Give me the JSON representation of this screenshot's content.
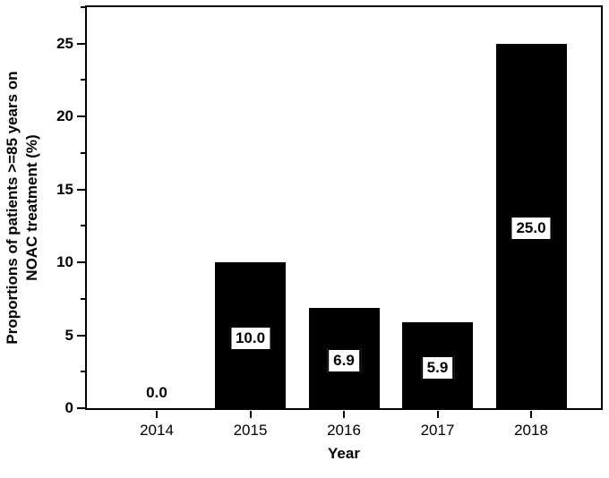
{
  "figure": {
    "background": "#ffffff",
    "axis_color": "#000000"
  },
  "chart_data": {
    "type": "bar",
    "categories": [
      "2014",
      "2015",
      "2016",
      "2017",
      "2018"
    ],
    "values": [
      0.0,
      10.0,
      6.9,
      5.9,
      25.0
    ],
    "bar_labels": [
      "0.0",
      "10.0",
      "6.9",
      "5.9",
      "25.0"
    ],
    "xlabel": "Year",
    "ylabel": "Proportions of patients >=85 years on NOAC treatment (%)",
    "ylabel_lines": [
      "Proportions of patients >=85 years on",
      "NOAC treatment (%)"
    ],
    "y_ticks": [
      0,
      5,
      10,
      15,
      20,
      25
    ],
    "y_tick_labels": [
      "0",
      "5",
      "10",
      "15",
      "20",
      "25"
    ],
    "y_minor_ticks": [
      2.5,
      7.5,
      12.5,
      17.5,
      22.5,
      27.5
    ],
    "ylim": [
      0,
      27.6
    ],
    "bar_color": "#000000",
    "label_box": {
      "fill": "#ffffff",
      "border": "#000000"
    },
    "grid": false
  }
}
